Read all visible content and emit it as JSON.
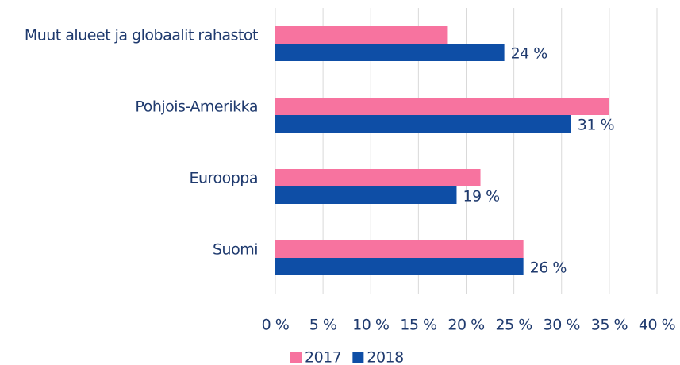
{
  "chart_data": {
    "type": "hbar",
    "categories": [
      "Muut alueet ja globaalit rahastot",
      "Pohjois-Amerikka",
      "Eurooppa",
      "Suomi"
    ],
    "series": [
      {
        "name": "2017",
        "color": "#f7739f",
        "values": [
          18,
          35,
          21.5,
          26
        ]
      },
      {
        "name": "2018",
        "color": "#0e4ea6",
        "values": [
          24,
          31,
          19,
          26
        ],
        "value_labels": [
          "24 %",
          "31 %",
          "19 %",
          "26 %"
        ]
      }
    ],
    "xlim": [
      0,
      40
    ],
    "xticks": [
      {
        "value": 0,
        "label": "0 %"
      },
      {
        "value": 5,
        "label": "5 %"
      },
      {
        "value": 10,
        "label": "10 %"
      },
      {
        "value": 15,
        "label": "15 %"
      },
      {
        "value": 20,
        "label": "20 %"
      },
      {
        "value": 25,
        "label": "25 %"
      },
      {
        "value": 30,
        "label": "30 %"
      },
      {
        "value": 35,
        "label": "35 %"
      },
      {
        "value": 40,
        "label": "40 %"
      }
    ],
    "grid": true
  }
}
